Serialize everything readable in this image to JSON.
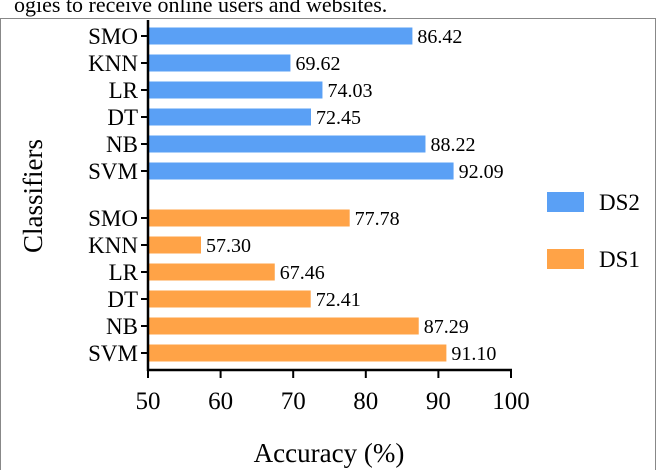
{
  "caption_fragment": "ogies to receive online users and websites.",
  "colors": {
    "DS2": "#5aa0f5",
    "DS1": "#ffa347"
  },
  "chart_data": {
    "type": "bar",
    "orientation": "horizontal",
    "xlabel": "Accuracy (%)",
    "ylabel": "Classifiers",
    "xlim": [
      50,
      100
    ],
    "xticks": [
      50,
      60,
      70,
      80,
      90,
      100
    ],
    "legend_position": "right",
    "categories": [
      "SMO",
      "KNN",
      "LR",
      "DT",
      "NB",
      "SVM"
    ],
    "series": [
      {
        "name": "DS2",
        "values": [
          86.42,
          69.62,
          74.03,
          72.45,
          88.22,
          92.09
        ],
        "labels": [
          "86.42",
          "69.62",
          "74.03",
          "72.45",
          "88.22",
          "92.09"
        ]
      },
      {
        "name": "DS1",
        "values": [
          77.78,
          57.3,
          67.46,
          72.41,
          87.29,
          91.1
        ],
        "labels": [
          "77.78",
          "57.30",
          "67.46",
          "72.41",
          "87.29",
          "91.10"
        ]
      }
    ]
  }
}
